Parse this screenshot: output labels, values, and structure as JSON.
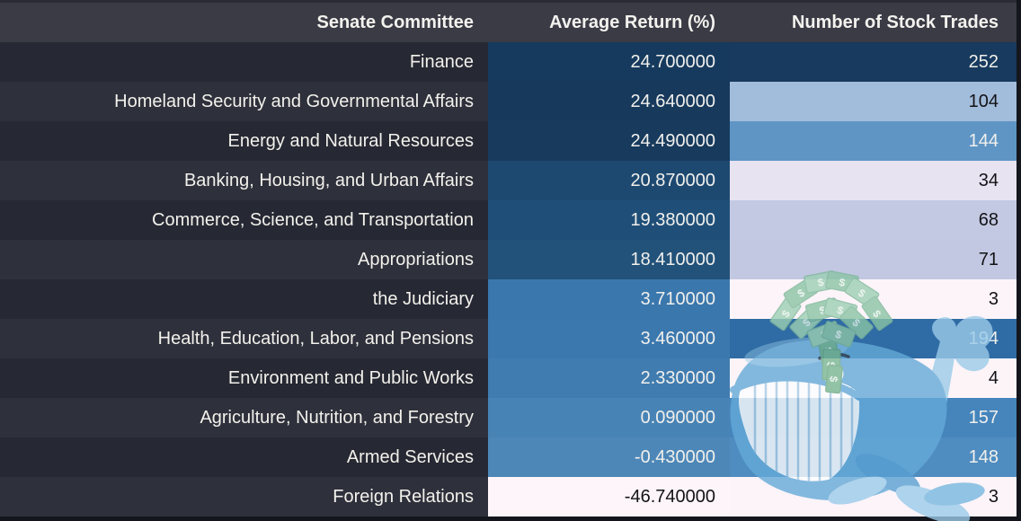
{
  "table": {
    "columns": [
      {
        "label": "Senate Committee"
      },
      {
        "label": "Average Return (%)"
      },
      {
        "label": "Number of Stock Trades"
      }
    ],
    "rows": [
      {
        "committee": "Finance",
        "avg_return": "24.700000",
        "trades": "252",
        "return_bg": "#163a5e",
        "return_fg": "#f1f0ec",
        "trades_bg": "#173a5e",
        "trades_fg": "#f1f0ec"
      },
      {
        "committee": "Homeland Security and Governmental Affairs",
        "avg_return": "24.640000",
        "trades": "104",
        "return_bg": "#17395c",
        "return_fg": "#f1f0ec",
        "trades_bg": "#a2bcdb",
        "trades_fg": "#131317"
      },
      {
        "committee": "Energy and Natural Resources",
        "avg_return": "24.490000",
        "trades": "144",
        "return_bg": "#173a5d",
        "return_fg": "#f1f0ec",
        "trades_bg": "#5e95c5",
        "trades_fg": "#f1f0ec"
      },
      {
        "committee": "Banking, Housing, and Urban Affairs",
        "avg_return": "20.870000",
        "trades": "34",
        "return_bg": "#1d4971",
        "return_fg": "#f1f0ec",
        "trades_bg": "#e7e3f0",
        "trades_fg": "#131317"
      },
      {
        "committee": "Commerce, Science, and Transportation",
        "avg_return": "19.380000",
        "trades": "68",
        "return_bg": "#1f4f78",
        "return_fg": "#f1f0ec",
        "trades_bg": "#c3c9e2",
        "trades_fg": "#131317"
      },
      {
        "committee": "Appropriations",
        "avg_return": "18.410000",
        "trades": "71",
        "return_bg": "#22527a",
        "return_fg": "#f1f0ec",
        "trades_bg": "#c2c8e1",
        "trades_fg": "#131317"
      },
      {
        "committee": "the Judiciary",
        "avg_return": "3.710000",
        "trades": "3",
        "return_bg": "#3a77ad",
        "return_fg": "#f1f0ec",
        "trades_bg": "#fdf4f9",
        "trades_fg": "#131317"
      },
      {
        "committee": "Health, Education, Labor, and Pensions",
        "avg_return": "3.460000",
        "trades": "194",
        "return_bg": "#3b78ae",
        "return_fg": "#f1f0ec",
        "trades_bg": "#2f6ba4",
        "trades_fg": "#f1f0ec"
      },
      {
        "committee": "Environment and Public Works",
        "avg_return": "2.330000",
        "trades": "4",
        "return_bg": "#407cb0",
        "return_fg": "#f1f0ec",
        "trades_bg": "#fdf4f8",
        "trades_fg": "#131317"
      },
      {
        "committee": "Agriculture, Nutrition, and Forestry",
        "avg_return": "0.090000",
        "trades": "157",
        "return_bg": "#4883b5",
        "return_fg": "#f1f0ec",
        "trades_bg": "#4585bc",
        "trades_fg": "#f1f0ec"
      },
      {
        "committee": "Armed Services",
        "avg_return": "-0.430000",
        "trades": "148",
        "return_bg": "#4d87b8",
        "return_fg": "#f1f0ec",
        "trades_bg": "#4f8cc0",
        "trades_fg": "#f1f0ec"
      },
      {
        "committee": "Foreign Relations",
        "avg_return": "-46.740000",
        "trades": "3",
        "return_bg": "#fdf5fa",
        "return_fg": "#131317",
        "trades_bg": "#fdf4f9",
        "trades_fg": "#131317"
      }
    ]
  },
  "watermark": {
    "icon": "whale-spouting-money-icon"
  },
  "theme": {
    "top-strip": "#2a2b35",
    "header-bg": "#3a3b45",
    "header-fg": "#f4f2ee",
    "committee-fg": "#f3f1ec",
    "row-odd": "#262833",
    "row-even": "#2e303b",
    "page-border": "#14161d"
  }
}
